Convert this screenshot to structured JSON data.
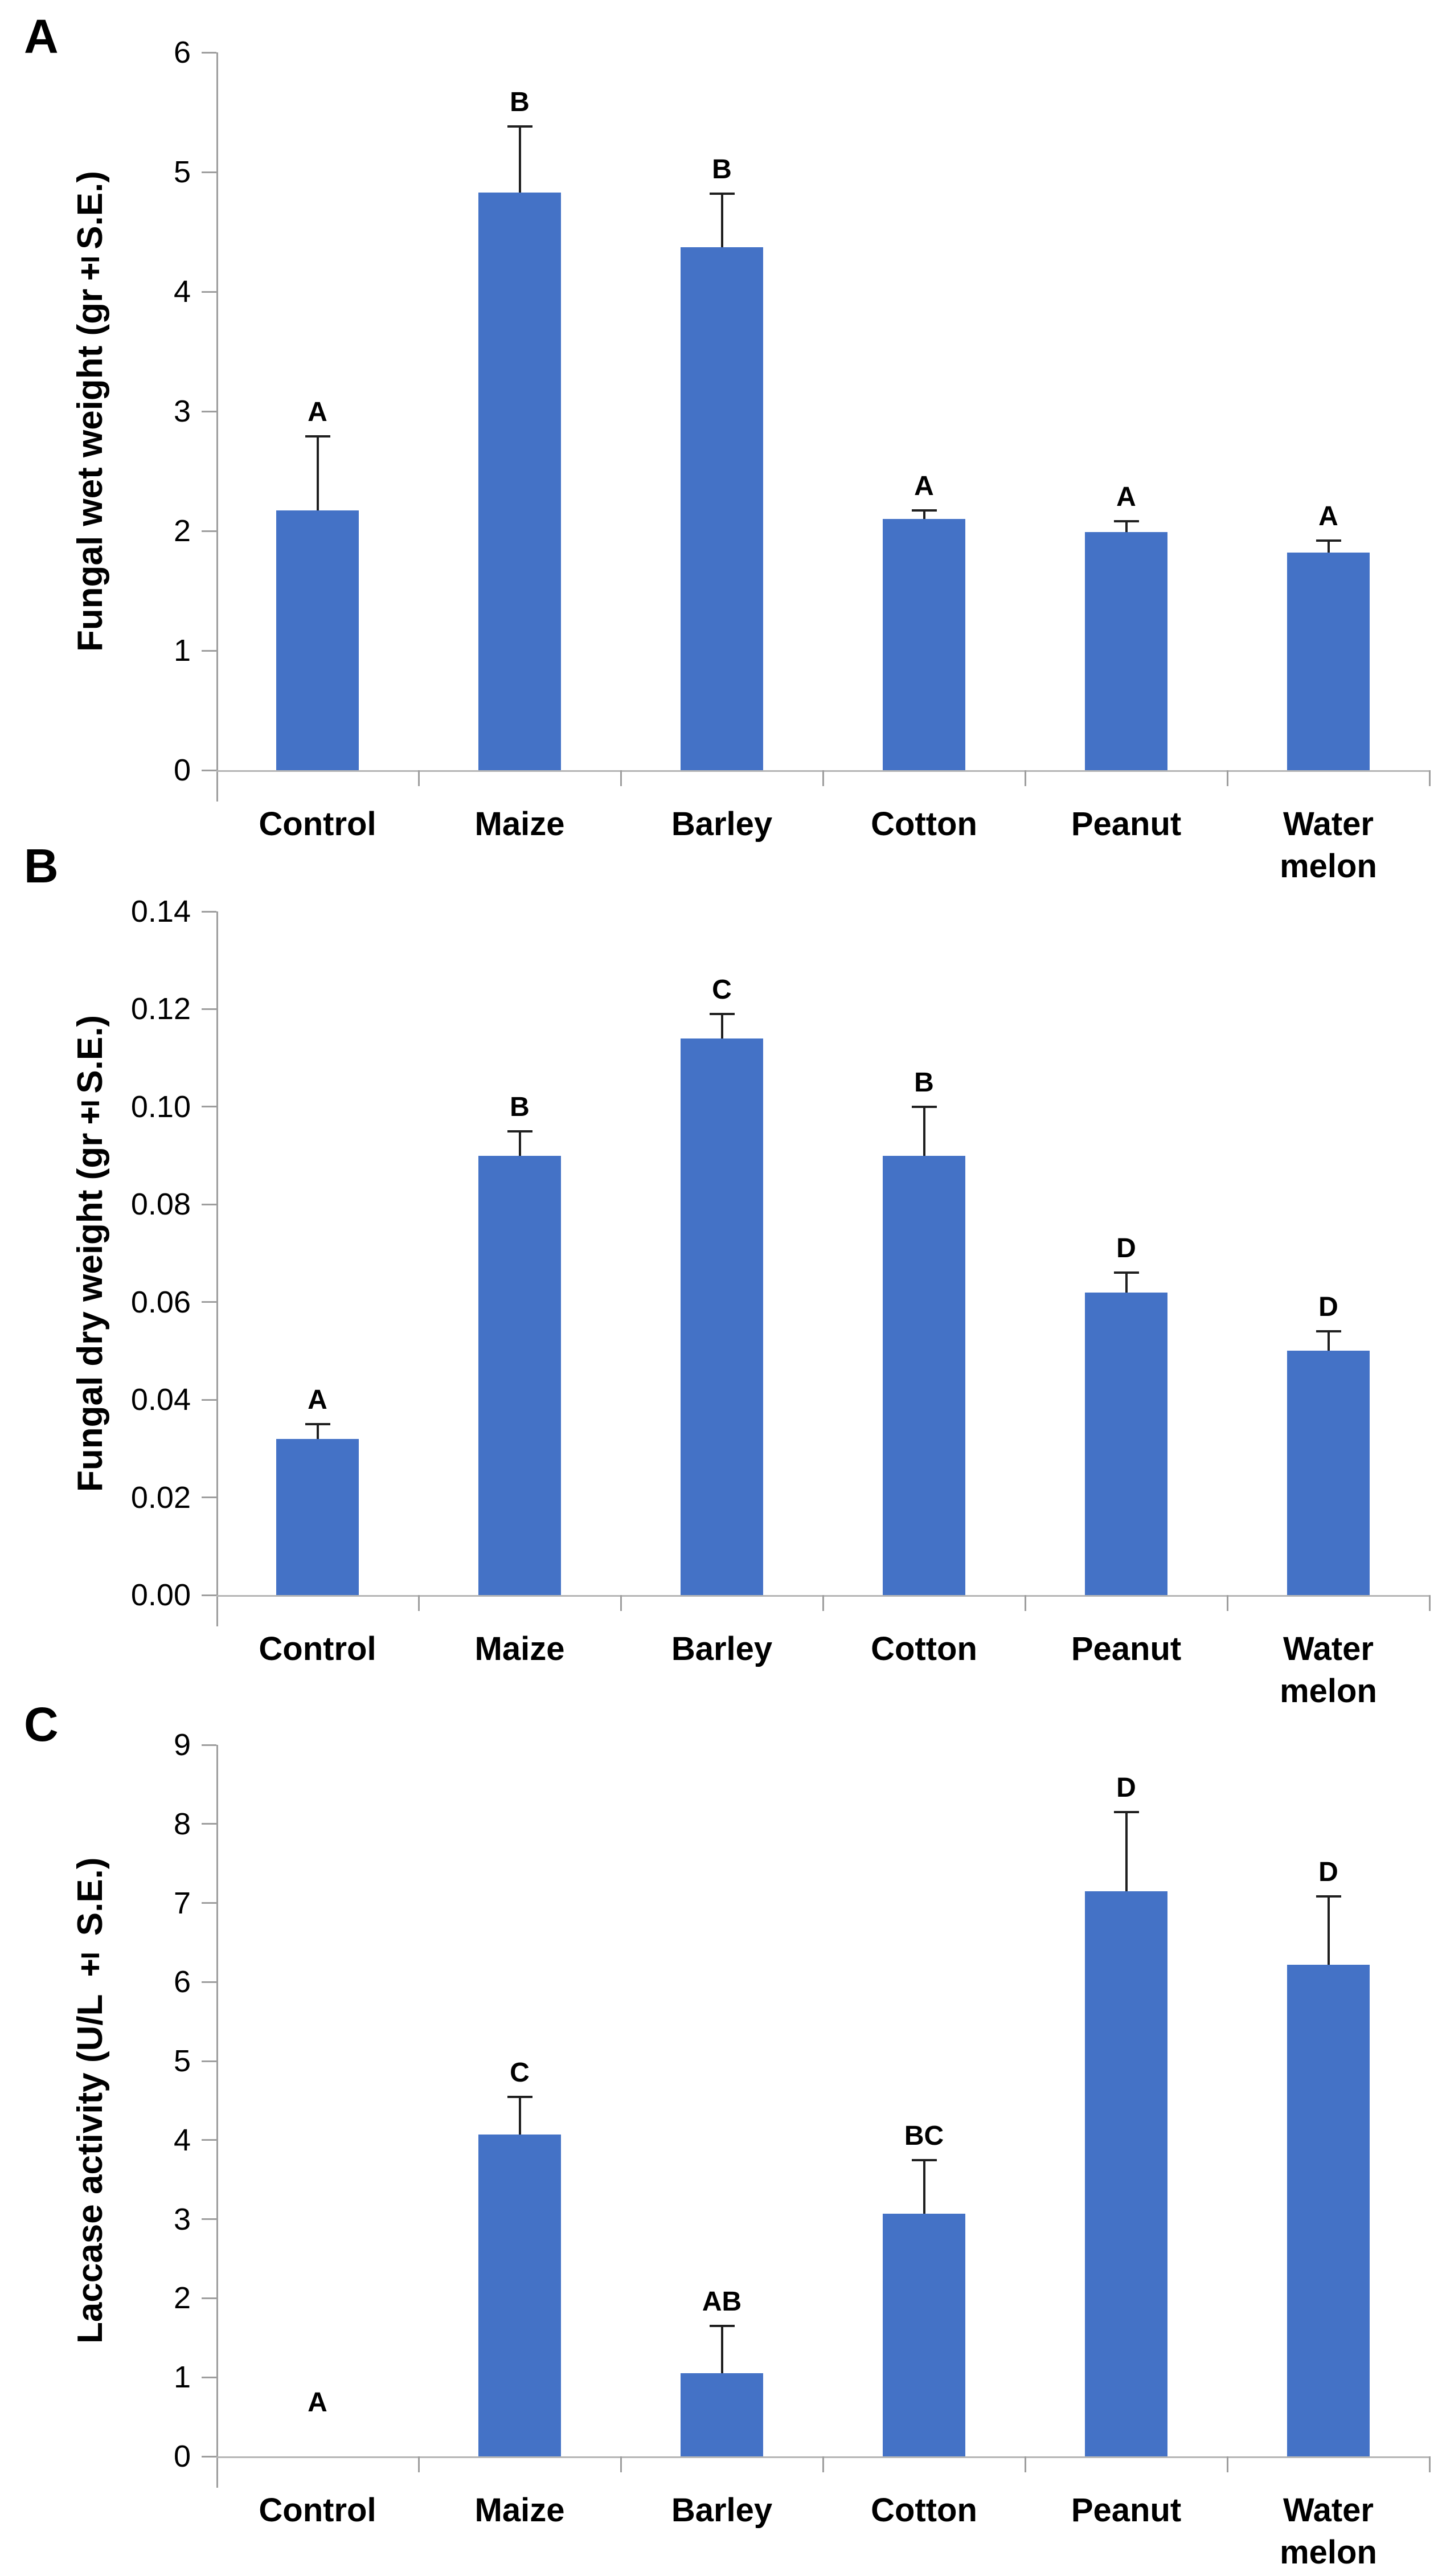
{
  "figure": {
    "background": "#ffffff"
  },
  "colors": {
    "bar": "#4472c6",
    "error_bar": "#1f1f1f",
    "axis": "#9e9e9e",
    "baseline": "#b5b5b5",
    "text": "#000000"
  },
  "chart_data": [
    {
      "type": "bar",
      "panel": "A",
      "title": "",
      "xlabel": "",
      "ylabel": "Fungal wet weight (gr±S.E.)",
      "categories": [
        "Control",
        "Maize",
        "Barley",
        "Cotton",
        "Peanut",
        "Water melon"
      ],
      "values": [
        2.17,
        4.83,
        4.37,
        2.1,
        1.99,
        1.82
      ],
      "errors": [
        0.62,
        0.55,
        0.45,
        0.07,
        0.09,
        0.1
      ],
      "letters": [
        "A",
        "B",
        "B",
        "A",
        "A",
        "A"
      ],
      "ylim": [
        0,
        6
      ],
      "yticks": [
        "0",
        "1",
        "2",
        "3",
        "4",
        "5",
        "6"
      ],
      "grid": "off",
      "legend": "none"
    },
    {
      "type": "bar",
      "panel": "B",
      "title": "",
      "xlabel": "",
      "ylabel": "Fungal dry weight (gr±S.E.)",
      "categories": [
        "Control",
        "Maize",
        "Barley",
        "Cotton",
        "Peanut",
        "Water melon"
      ],
      "values": [
        0.032,
        0.09,
        0.114,
        0.09,
        0.062,
        0.05
      ],
      "errors": [
        0.003,
        0.005,
        0.005,
        0.01,
        0.004,
        0.004
      ],
      "letters": [
        "A",
        "B",
        "C",
        "B",
        "D",
        "D"
      ],
      "ylim": [
        0,
        0.14
      ],
      "yticks": [
        "0.00",
        "0.02",
        "0.04",
        "0.06",
        "0.08",
        "0.10",
        "0.12",
        "0.14"
      ],
      "grid": "off",
      "legend": "none"
    },
    {
      "type": "bar",
      "panel": "C",
      "title": "",
      "xlabel": "",
      "ylabel": "Laccase activity (U/L ± S.E.)",
      "categories": [
        "Control",
        "Maize",
        "Barley",
        "Cotton",
        "Peanut",
        "Water melon"
      ],
      "values": [
        0,
        4.07,
        1.05,
        3.07,
        7.15,
        6.22
      ],
      "errors": [
        0,
        0.48,
        0.6,
        0.68,
        1.0,
        0.86
      ],
      "letters": [
        "A",
        "C",
        "AB",
        "BC",
        "D",
        "D"
      ],
      "ylim": [
        0,
        9
      ],
      "yticks": [
        "0",
        "1",
        "2",
        "3",
        "4",
        "5",
        "6",
        "7",
        "8",
        "9"
      ],
      "grid": "off",
      "legend": "none"
    }
  ]
}
